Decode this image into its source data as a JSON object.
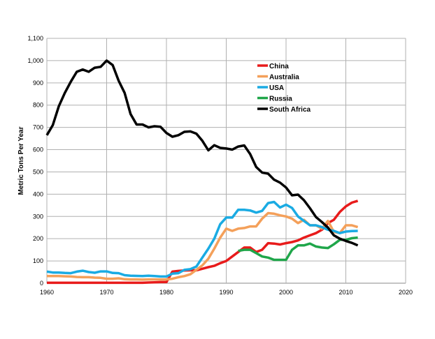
{
  "chart_data": {
    "type": "line",
    "title": "",
    "xlabel": "",
    "ylabel": "Metric Tons Per Year",
    "xlim": [
      1960,
      2020
    ],
    "ylim": [
      0,
      1100
    ],
    "xticks": [
      1960,
      1970,
      1980,
      1990,
      2000,
      2010,
      2020
    ],
    "yticks": [
      0,
      100,
      200,
      300,
      400,
      500,
      600,
      700,
      800,
      900,
      1000,
      1100
    ],
    "ytick_labels": [
      "0",
      "100",
      "200",
      "300",
      "400",
      "500",
      "600",
      "700",
      "800",
      "900",
      "1,000",
      "1,100"
    ],
    "grid": true,
    "legend_placement": "top-right",
    "series": [
      {
        "name": "China",
        "color": "#e81b1b",
        "start": 1960,
        "values": [
          2,
          2,
          2,
          2,
          2,
          2,
          2,
          2,
          2,
          2,
          2,
          2,
          2,
          2,
          2,
          2,
          2,
          3,
          4,
          5,
          5,
          52,
          55,
          57,
          58,
          58,
          65,
          72,
          78,
          90,
          100,
          120,
          140,
          160,
          160,
          140,
          150,
          180,
          178,
          174,
          180,
          185,
          192,
          205,
          215,
          225,
          240,
          270,
          285,
          320,
          345,
          362,
          370
        ]
      },
      {
        "name": "Australia",
        "color": "#f4a05a",
        "start": 1960,
        "values": [
          32,
          32,
          32,
          31,
          30,
          28,
          27,
          27,
          25,
          24,
          20,
          20,
          22,
          18,
          17,
          17,
          16,
          17,
          17,
          17,
          17,
          20,
          27,
          32,
          40,
          60,
          80,
          110,
          155,
          205,
          245,
          235,
          245,
          248,
          255,
          255,
          290,
          315,
          312,
          305,
          300,
          290,
          270,
          285,
          260,
          260,
          245,
          280,
          230,
          225,
          260,
          260,
          252
        ]
      },
      {
        "name": "USA",
        "color": "#1aabe3",
        "start": 1960,
        "values": [
          52,
          48,
          48,
          46,
          45,
          52,
          56,
          50,
          47,
          53,
          53,
          46,
          45,
          36,
          34,
          33,
          32,
          34,
          32,
          30,
          30,
          43,
          45,
          60,
          63,
          75,
          115,
          155,
          200,
          265,
          295,
          295,
          330,
          330,
          327,
          317,
          325,
          360,
          365,
          340,
          353,
          338,
          300,
          280,
          260,
          260,
          252,
          240,
          235,
          225,
          232,
          234,
          235
        ]
      },
      {
        "name": "Russia",
        "color": "#1fa64a",
        "start": 1992,
        "values": [
          145,
          150,
          150,
          135,
          120,
          115,
          105,
          105,
          105,
          150,
          170,
          170,
          178,
          165,
          160,
          158,
          175,
          195,
          195,
          202,
          205
        ]
      },
      {
        "name": "South Africa",
        "color": "#000000",
        "start": 1960,
        "values": [
          665,
          710,
          795,
          855,
          905,
          950,
          960,
          950,
          968,
          972,
          1000,
          980,
          910,
          855,
          760,
          713,
          713,
          700,
          705,
          703,
          675,
          658,
          665,
          680,
          682,
          672,
          640,
          597,
          620,
          608,
          605,
          600,
          614,
          619,
          580,
          522,
          497,
          492,
          465,
          452,
          430,
          395,
          398,
          373,
          337,
          297,
          275,
          250,
          215,
          200,
          190,
          181,
          170
        ]
      }
    ]
  }
}
